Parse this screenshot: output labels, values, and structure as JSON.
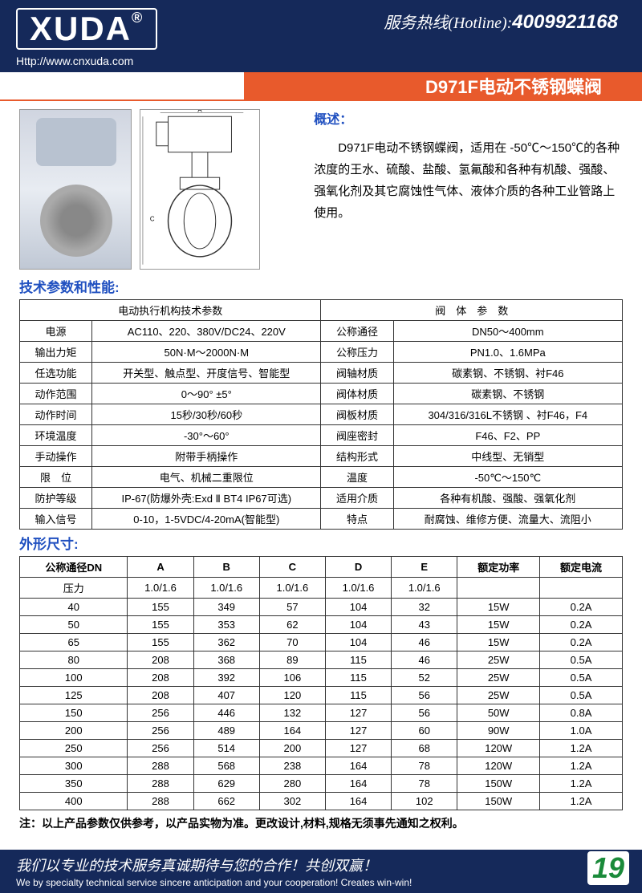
{
  "header": {
    "logo": "XUDA",
    "logo_tm": "®",
    "hotline_label": "服务热线(Hotline):",
    "hotline_number": "4009921168",
    "url": "Http://www.cnxuda.com"
  },
  "title": "D971F电动不锈钢蝶阀",
  "overview": {
    "heading": "概述：",
    "text": "D971F电动不锈钢蝶阀，适用在 -50℃～150℃的各种浓度的王水、硫酸、盐酸、氢氟酸和各种有机酸、强酸、强氧化剂及其它腐蚀性气体、液体介质的各种工业管路上使用。"
  },
  "spec_section_title": "技术参数和性能:",
  "spec_table": {
    "header_left": "电动执行机构技术参数",
    "header_right": "阀　体　参　数",
    "rows": [
      [
        "电源",
        "AC110、220、380V/DC24、220V",
        "公称通径",
        "DN50～400mm"
      ],
      [
        "输出力矩",
        "50N·M～2000N·M",
        "公称压力",
        "PN1.0、1.6MPa"
      ],
      [
        "任选功能",
        "开关型、触点型、开度信号、智能型",
        "阀轴材质",
        "碳素钢、不锈钢、衬F46"
      ],
      [
        "动作范围",
        "0～90° ±5°",
        "阀体材质",
        "碳素钢、不锈钢"
      ],
      [
        "动作时间",
        "15秒/30秒/60秒",
        "阀板材质",
        "304/316/316L不锈钢 、衬F46，F4"
      ],
      [
        "环境温度",
        "-30°～60°",
        "阀座密封",
        "F46、F2、PP"
      ],
      [
        "手动操作",
        "附带手柄操作",
        "结构形式",
        "中线型、无销型"
      ],
      [
        "限　位",
        "电气、机械二重限位",
        "温度",
        "-50℃～150℃"
      ],
      [
        "防护等级",
        "IP-67(防爆外壳:Exd Ⅱ BT4 IP67可选)",
        "适用介质",
        "各种有机酸、强酸、强氧化剂"
      ],
      [
        "输入信号",
        "0-10，1-5VDC/4-20mA(智能型)",
        "特点",
        "耐腐蚀、维修方便、流量大、流阻小"
      ]
    ]
  },
  "dim_section_title": "外形尺寸:",
  "dim_table": {
    "headers": [
      "公称通径DN",
      "A",
      "B",
      "C",
      "D",
      "E",
      "额定功率",
      "额定电流"
    ],
    "pressure_row": [
      "压力",
      "1.0/1.6",
      "1.0/1.6",
      "1.0/1.6",
      "1.0/1.6",
      "1.0/1.6",
      "",
      ""
    ],
    "rows": [
      [
        "40",
        "155",
        "349",
        "57",
        "104",
        "32",
        "15W",
        "0.2A"
      ],
      [
        "50",
        "155",
        "353",
        "62",
        "104",
        "43",
        "15W",
        "0.2A"
      ],
      [
        "65",
        "155",
        "362",
        "70",
        "104",
        "46",
        "15W",
        "0.2A"
      ],
      [
        "80",
        "208",
        "368",
        "89",
        "115",
        "46",
        "25W",
        "0.5A"
      ],
      [
        "100",
        "208",
        "392",
        "106",
        "115",
        "52",
        "25W",
        "0.5A"
      ],
      [
        "125",
        "208",
        "407",
        "120",
        "115",
        "56",
        "25W",
        "0.5A"
      ],
      [
        "150",
        "256",
        "446",
        "132",
        "127",
        "56",
        "50W",
        "0.8A"
      ],
      [
        "200",
        "256",
        "489",
        "164",
        "127",
        "60",
        "90W",
        "1.0A"
      ],
      [
        "250",
        "256",
        "514",
        "200",
        "127",
        "68",
        "120W",
        "1.2A"
      ],
      [
        "300",
        "288",
        "568",
        "238",
        "164",
        "78",
        "120W",
        "1.2A"
      ],
      [
        "350",
        "288",
        "629",
        "280",
        "164",
        "78",
        "150W",
        "1.2A"
      ],
      [
        "400",
        "288",
        "662",
        "302",
        "164",
        "102",
        "150W",
        "1.2A"
      ]
    ]
  },
  "note": "注：以上产品参数仅供参考，以产品实物为准。更改设计,材料,规格无须事先通知之权利。",
  "footer": {
    "cn": "我们以专业的技术服务真诚期待与您的合作！共创双赢！",
    "en": "We by specialty technical service sincere anticipation and your cooperation! Creates win-win!",
    "page": "19"
  }
}
